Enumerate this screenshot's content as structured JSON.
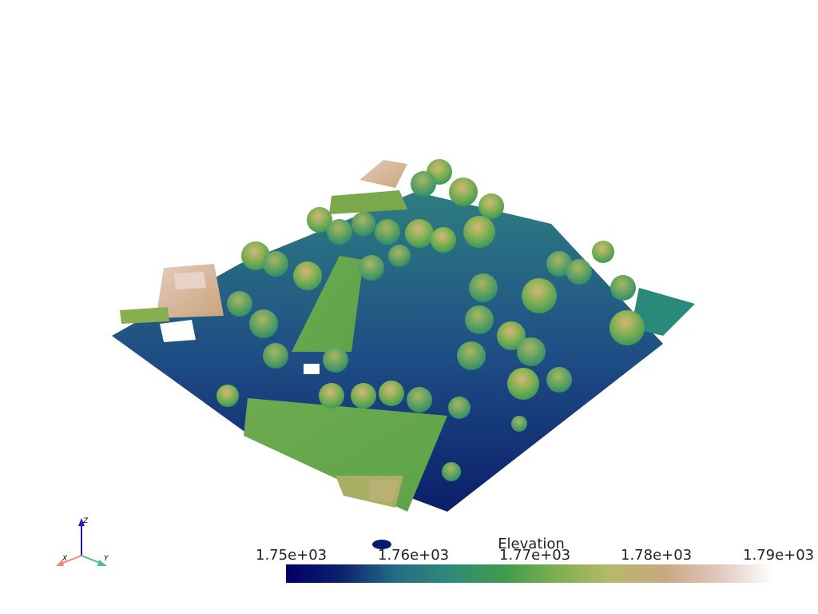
{
  "scalar_bar": {
    "title": "Elevation",
    "ticks": [
      "1.75e+03",
      "1.76e+03",
      "1.77e+03",
      "1.78e+03",
      "1.79e+03"
    ],
    "colormap": [
      "#000066",
      "#0d1f6e",
      "#246b85",
      "#2f8a7a",
      "#3f9a4e",
      "#7db04f",
      "#b8b86a",
      "#c8a882",
      "#e0c8bc",
      "#ffffff"
    ]
  },
  "axes": {
    "x_label": "X",
    "y_label": "Y",
    "z_label": "Z",
    "x_color": "#f08a6e",
    "y_color": "#50c08a",
    "z_color": "#1a1acc"
  },
  "scene": {
    "ground_color": "#1c3d7a",
    "tree_color": "#6aa84f",
    "tree_top_color": "#c8b06a",
    "building_color": "#7aaa4f",
    "roof_color": "#d8b89a"
  }
}
